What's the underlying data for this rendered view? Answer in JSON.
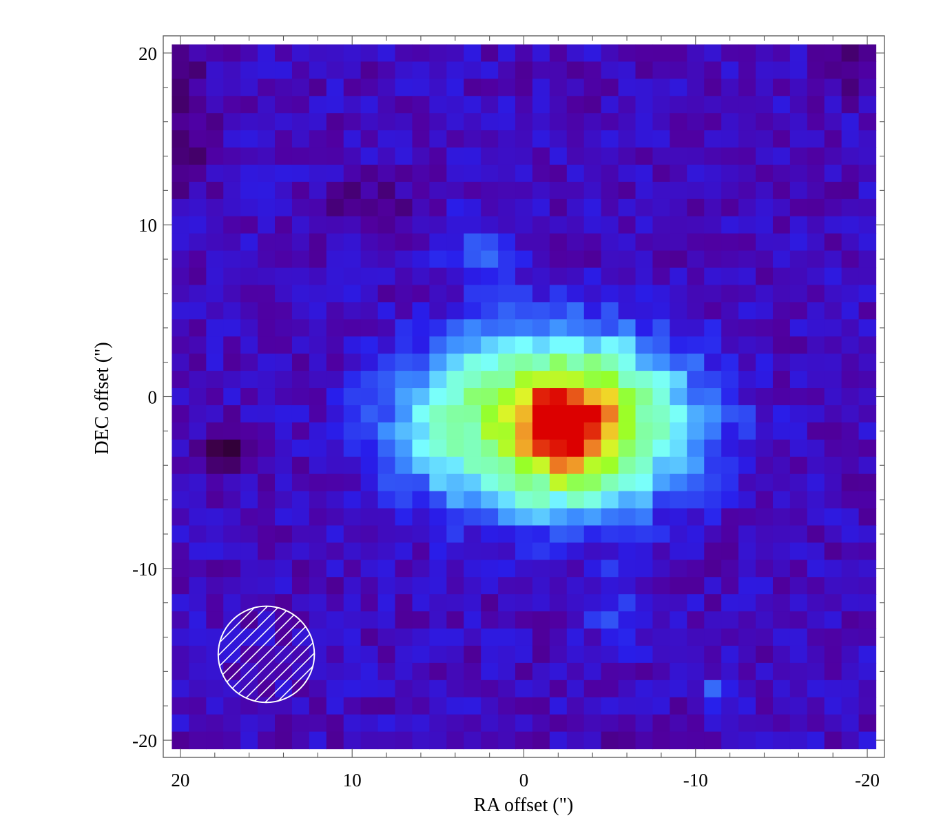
{
  "chart_data": {
    "type": "heatmap",
    "title": "",
    "xlabel": "RA offset (\")",
    "ylabel": "DEC offset (\")",
    "xlim": [
      21,
      -21
    ],
    "ylim": [
      -21,
      21
    ],
    "x_ticks": [
      "20",
      "10",
      "0",
      "-10",
      "-20"
    ],
    "y_ticks": [
      "20",
      "10",
      "0",
      "-10",
      "-20"
    ],
    "x_tick_values": [
      20,
      10,
      0,
      -10,
      -20
    ],
    "y_tick_values": [
      20,
      10,
      0,
      -10,
      -20
    ],
    "image_extent": {
      "ra": [
        20.5,
        -20.5
      ],
      "dec": [
        -20.5,
        20.5
      ]
    },
    "pixel_size_arcsec": 1.0,
    "colormap": "rainbow (black-purple-blue-cyan-green-yellow-red)",
    "emission": {
      "peak_ra": -2.5,
      "peak_dec": -1.8,
      "peak_level": 1.0,
      "extent_ra": [
        10.5,
        -12.5
      ],
      "extent_dec": [
        -14.5,
        10.0
      ]
    },
    "beam": {
      "center_ra": 15.0,
      "center_dec": -15.0,
      "diameter_arcsec": 5.6,
      "style": "hatched circle"
    },
    "grid": false
  }
}
